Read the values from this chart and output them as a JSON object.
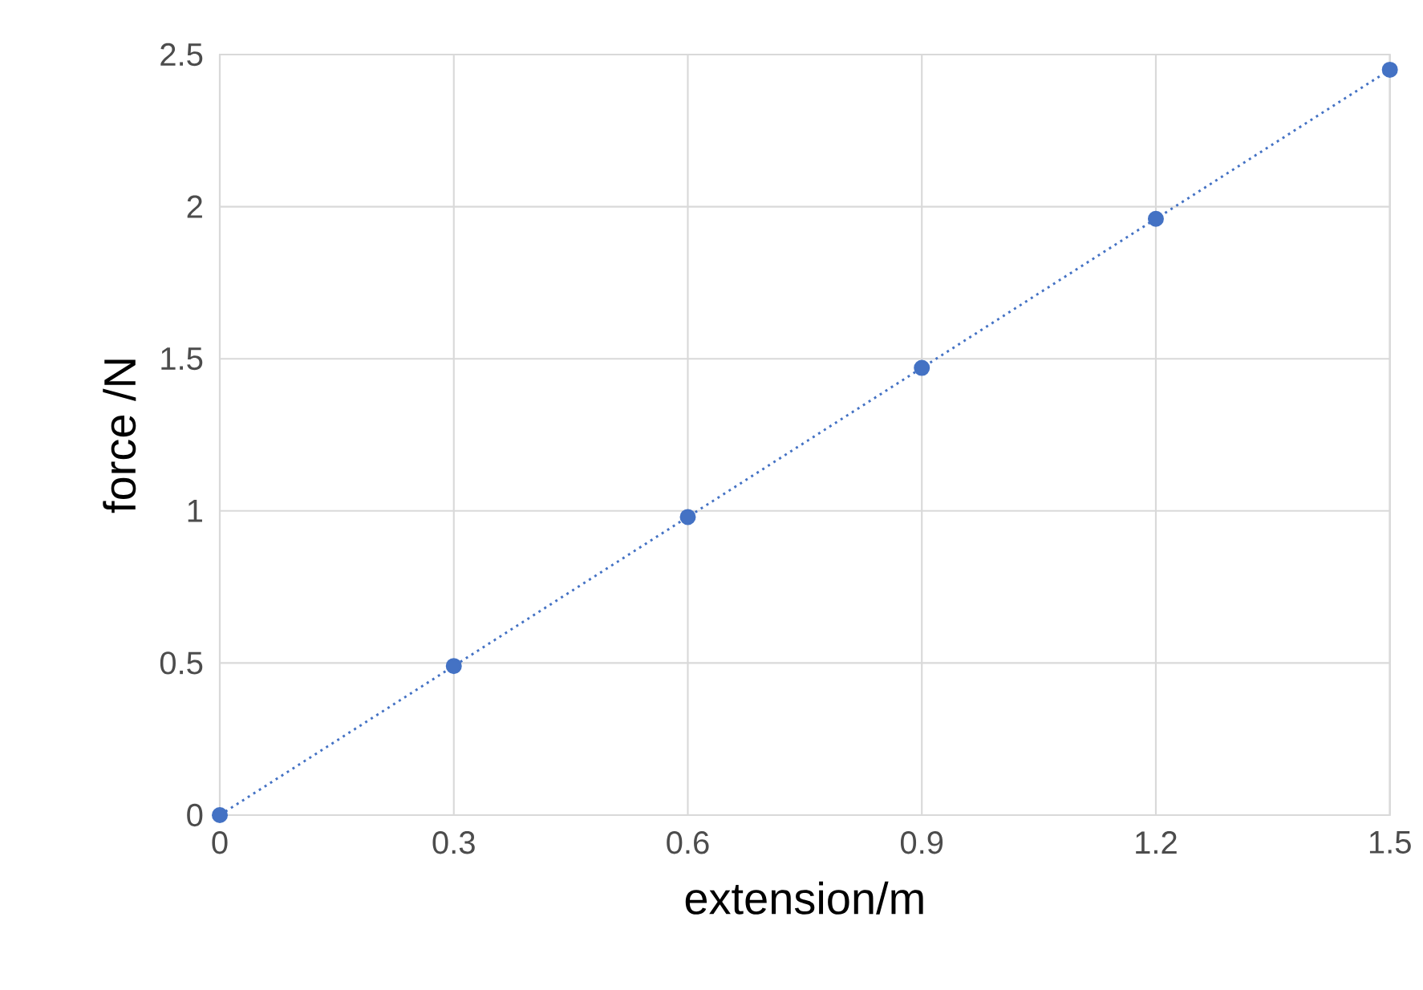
{
  "chart_data": {
    "type": "line",
    "xlabel": "extension/m",
    "ylabel": "force /N",
    "x": [
      0,
      0.3,
      0.6,
      0.9,
      1.2,
      1.5
    ],
    "series": [
      {
        "color": "#4472c4",
        "values": [
          0,
          0.49,
          0.98,
          1.47,
          1.96,
          2.45
        ]
      }
    ],
    "xlim": [
      0,
      1.5
    ],
    "ylim": [
      0,
      2.5
    ],
    "xticks": [
      0,
      0.3,
      0.6,
      0.9,
      1.2,
      1.5
    ],
    "yticks": [
      0,
      0.5,
      1,
      1.5,
      2,
      2.5
    ],
    "grid": true,
    "marker": "circle",
    "line_style": "dotted"
  }
}
